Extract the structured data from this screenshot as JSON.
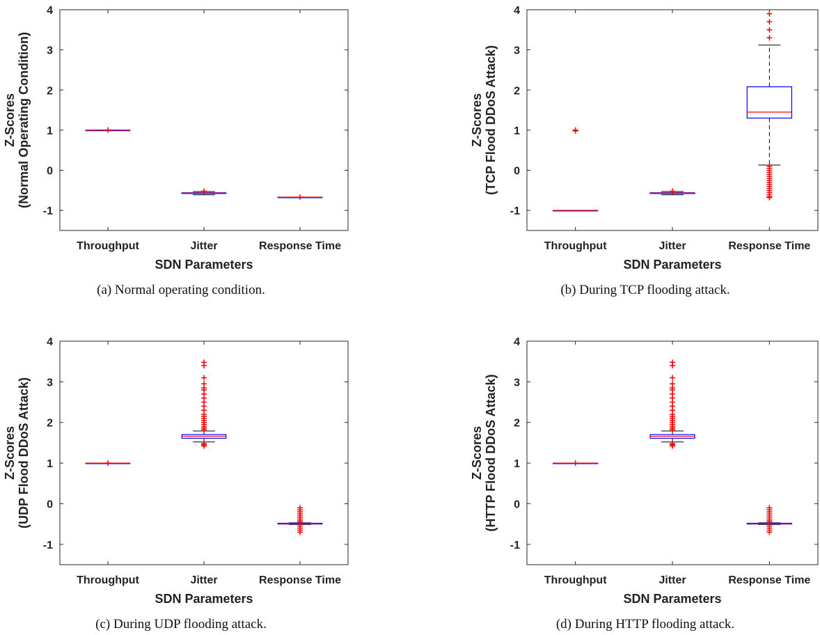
{
  "chart_data": [
    {
      "type": "box",
      "caption": "(a) Normal operating condition.",
      "xlabel": "SDN Parameters",
      "ylabel": "Z-Scores\n(Normal Operating Condition)",
      "ylim": [
        -1.5,
        4
      ],
      "yticks": [
        -1,
        0,
        1,
        2,
        3,
        4
      ],
      "categories": [
        "Throughput",
        "Jitter",
        "Response Time"
      ],
      "boxes": [
        {
          "q1": 1.0,
          "median": 1.0,
          "q3": 1.0,
          "whisker_low": 1.0,
          "whisker_high": 1.0,
          "outliers": [
            1.0
          ]
        },
        {
          "q1": -0.58,
          "median": -0.57,
          "q3": -0.56,
          "whisker_low": -0.61,
          "whisker_high": -0.53,
          "outliers": [
            -0.52
          ]
        },
        {
          "q1": -0.67,
          "median": -0.67,
          "q3": -0.67,
          "whisker_low": -0.67,
          "whisker_high": -0.67,
          "outliers": [
            -0.67
          ]
        }
      ]
    },
    {
      "type": "box",
      "caption": "(b) During TCP flooding attack.",
      "xlabel": "SDN Parameters",
      "ylabel": "Z-Scores\n(TCP Flood DDoS Attack)",
      "ylim": [
        -1.5,
        4
      ],
      "yticks": [
        -1,
        0,
        1,
        2,
        3,
        4
      ],
      "categories": [
        "Throughput",
        "Jitter",
        "Response Time"
      ],
      "boxes": [
        {
          "q1": -1.0,
          "median": -1.0,
          "q3": -1.0,
          "whisker_low": -1.0,
          "whisker_high": -1.0,
          "outliers": [
            1.0,
            0.98
          ]
        },
        {
          "q1": -0.58,
          "median": -0.57,
          "q3": -0.56,
          "whisker_low": -0.61,
          "whisker_high": -0.53,
          "outliers": [
            -0.52
          ]
        },
        {
          "q1": 1.3,
          "median": 1.45,
          "q3": 2.08,
          "whisker_low": 0.13,
          "whisker_high": 3.12,
          "outliers": [
            3.3,
            3.5,
            3.7,
            3.9,
            0.1,
            0.05,
            0.0,
            -0.05,
            -0.1,
            -0.15,
            -0.2,
            -0.25,
            -0.3,
            -0.35,
            -0.4,
            -0.45,
            -0.5,
            -0.55,
            -0.6,
            -0.65,
            -0.68
          ]
        }
      ]
    },
    {
      "type": "box",
      "caption": "(c) During UDP flooding attack.",
      "xlabel": "SDN Parameters",
      "ylabel": "Z-Scores\n(UDP Flood DDoS Attack)",
      "ylim": [
        -1.5,
        4
      ],
      "yticks": [
        -1,
        0,
        1,
        2,
        3,
        4
      ],
      "categories": [
        "Throughput",
        "Jitter",
        "Response Time"
      ],
      "boxes": [
        {
          "q1": 1.0,
          "median": 1.0,
          "q3": 1.0,
          "whisker_low": 1.0,
          "whisker_high": 1.0,
          "outliers": [
            1.0
          ]
        },
        {
          "q1": 1.61,
          "median": 1.66,
          "q3": 1.7,
          "whisker_low": 1.52,
          "whisker_high": 1.79,
          "outliers": [
            1.42,
            1.45,
            1.48,
            1.82,
            1.86,
            1.9,
            1.95,
            2.0,
            2.05,
            2.1,
            2.15,
            2.2,
            2.3,
            2.4,
            2.5,
            2.6,
            2.7,
            2.8,
            2.85,
            2.95,
            3.1,
            3.4,
            3.48
          ]
        },
        {
          "q1": -0.5,
          "median": -0.49,
          "q3": -0.48,
          "whisker_low": -0.51,
          "whisker_high": -0.47,
          "outliers": [
            -0.1,
            -0.15,
            -0.2,
            -0.25,
            -0.3,
            -0.35,
            -0.4,
            -0.44,
            -0.55,
            -0.6,
            -0.65,
            -0.7
          ]
        }
      ]
    },
    {
      "type": "box",
      "caption": "(d) During HTTP flooding attack.",
      "xlabel": "SDN Parameters",
      "ylabel": "Z-Scores\n(HTTP Flood DDoS Attack)",
      "ylim": [
        -1.5,
        4
      ],
      "yticks": [
        -1,
        0,
        1,
        2,
        3,
        4
      ],
      "categories": [
        "Throughput",
        "Jitter",
        "Response Time"
      ],
      "boxes": [
        {
          "q1": 1.0,
          "median": 1.0,
          "q3": 1.0,
          "whisker_low": 1.0,
          "whisker_high": 1.0,
          "outliers": [
            1.0
          ]
        },
        {
          "q1": 1.61,
          "median": 1.66,
          "q3": 1.7,
          "whisker_low": 1.52,
          "whisker_high": 1.79,
          "outliers": [
            1.42,
            1.45,
            1.48,
            1.82,
            1.86,
            1.9,
            1.95,
            2.0,
            2.05,
            2.1,
            2.15,
            2.2,
            2.3,
            2.4,
            2.5,
            2.6,
            2.7,
            2.8,
            2.85,
            2.95,
            3.1,
            3.4,
            3.48
          ]
        },
        {
          "q1": -0.5,
          "median": -0.49,
          "q3": -0.48,
          "whisker_low": -0.51,
          "whisker_high": -0.47,
          "outliers": [
            -0.1,
            -0.15,
            -0.2,
            -0.25,
            -0.3,
            -0.35,
            -0.4,
            -0.44,
            -0.55,
            -0.6,
            -0.65,
            -0.7
          ]
        }
      ]
    }
  ],
  "colors": {
    "box": "#0000ff",
    "median": "#ff0000",
    "outlier": "#ff0000",
    "whisker": "#000000",
    "axis": "#262626"
  }
}
